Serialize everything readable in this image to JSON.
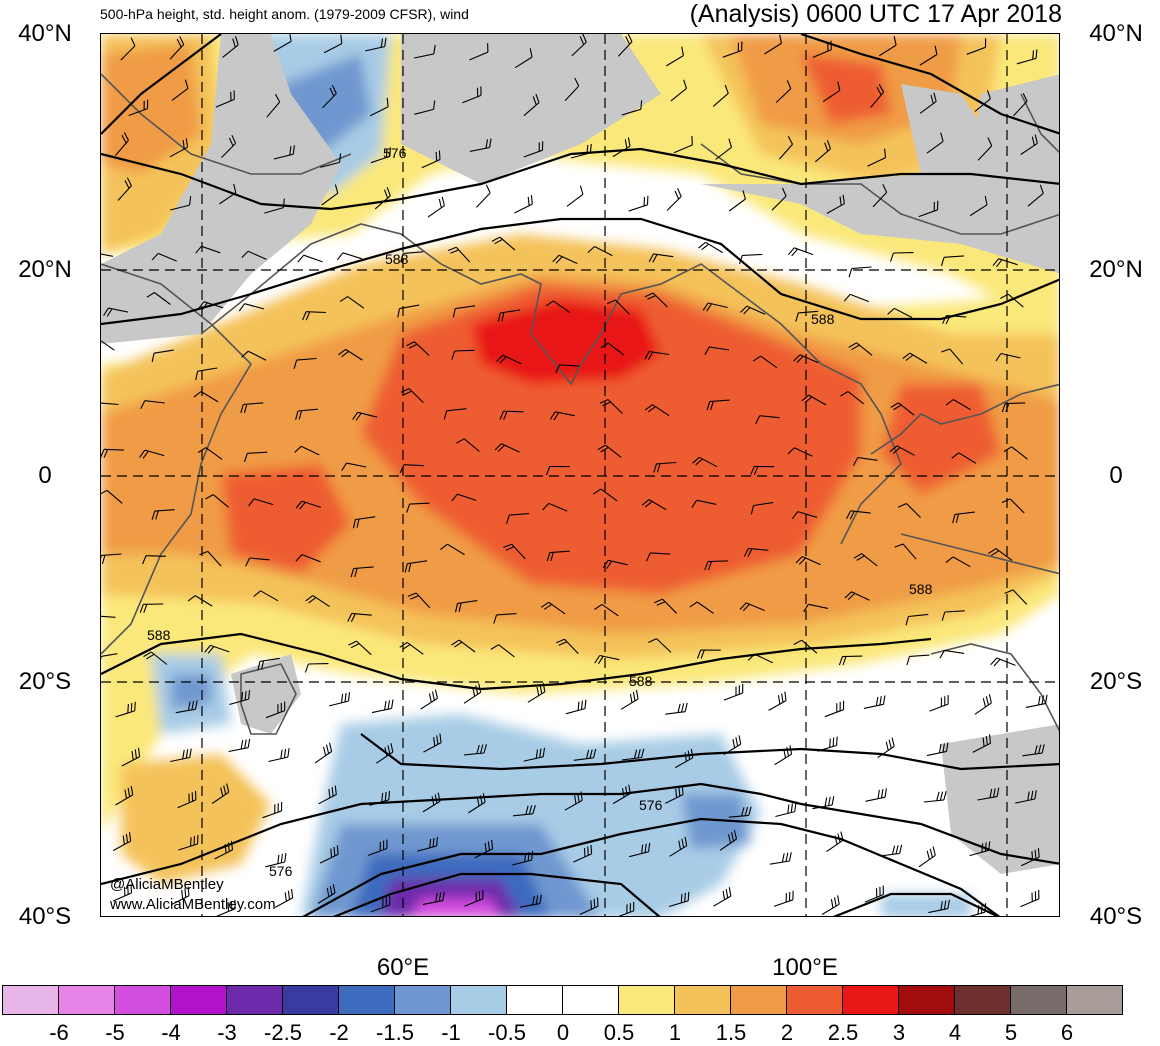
{
  "header": {
    "left_title": "500-hPa height, std. height anom. (1979-2009 CFSR), wind",
    "right_title": "(Analysis) 0600 UTC 17 Apr 2018"
  },
  "axes": {
    "lat_labels": [
      "40°N",
      "20°N",
      "0",
      "20°S",
      "40°S"
    ],
    "lon_labels": [
      "60°E",
      "100°E"
    ]
  },
  "contours": {
    "labels": [
      "576",
      "588",
      "588",
      "588",
      "588",
      "588",
      "576",
      "576"
    ]
  },
  "credits": {
    "twitter": "@AliciaMBentley",
    "website": "www.AliciaMBentley.com"
  },
  "colorbar": {
    "colors": [
      "#e8b5e8",
      "#e684e8",
      "#d44ee0",
      "#b312cc",
      "#6d2aab",
      "#3a3aa0",
      "#3d6bbd",
      "#6f98d0",
      "#a8cce6",
      "#ffffff",
      "#ffffff",
      "#fbe87a",
      "#f4c25a",
      "#f09b45",
      "#ee5d31",
      "#e81818",
      "#a30c0c",
      "#6e2f2f",
      "#776c6a",
      "#a89c99"
    ],
    "ticks": [
      "-6",
      "-5",
      "-4",
      "-3",
      "-2.5",
      "-2",
      "-1.5",
      "-1",
      "-0.5",
      "0",
      "0.5",
      "1",
      "1.5",
      "2",
      "2.5",
      "3",
      "4",
      "5",
      "6"
    ]
  },
  "map_colors": {
    "land_neutral": "#c8c8c8",
    "coast": "#555555"
  }
}
